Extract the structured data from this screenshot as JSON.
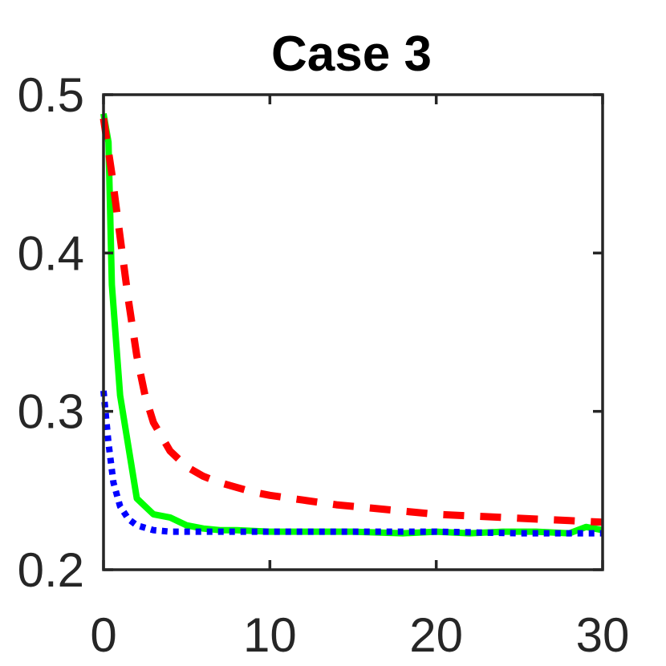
{
  "chart_data": {
    "type": "line",
    "title": "Case 3",
    "xlabel": "",
    "ylabel": "",
    "xlim": [
      0,
      30
    ],
    "ylim": [
      0.2,
      0.5
    ],
    "xticks": [
      0,
      10,
      20,
      30
    ],
    "xtick_labels": [
      "0",
      "10",
      "20",
      "30"
    ],
    "yticks": [
      0.2,
      0.3,
      0.4,
      0.5
    ],
    "ytick_labels": [
      "0.2",
      "0.3",
      "0.4",
      "0.5"
    ],
    "grid": false,
    "legend": "none",
    "series": [
      {
        "color": "#00ff00",
        "style": "solid",
        "x": [
          0,
          0.3,
          0.5,
          1,
          2,
          3,
          4,
          5,
          6,
          7,
          8,
          10,
          12,
          15,
          18,
          20,
          22,
          24,
          26,
          28,
          29,
          30
        ],
        "y": [
          0.488,
          0.47,
          0.38,
          0.31,
          0.245,
          0.235,
          0.233,
          0.228,
          0.226,
          0.225,
          0.225,
          0.224,
          0.224,
          0.224,
          0.223,
          0.224,
          0.223,
          0.224,
          0.224,
          0.223,
          0.227,
          0.225
        ]
      },
      {
        "color": "#ff0000",
        "style": "dashed",
        "x": [
          0,
          0.5,
          1,
          1.5,
          2,
          2.5,
          3,
          4,
          5,
          6,
          7,
          8,
          9,
          10,
          12,
          14,
          16,
          18,
          20,
          22,
          24,
          26,
          28,
          30
        ],
        "y": [
          0.485,
          0.45,
          0.41,
          0.37,
          0.335,
          0.31,
          0.293,
          0.275,
          0.265,
          0.259,
          0.255,
          0.252,
          0.249,
          0.247,
          0.244,
          0.241,
          0.239,
          0.237,
          0.235,
          0.234,
          0.233,
          0.232,
          0.231,
          0.23
        ]
      },
      {
        "color": "#0000ff",
        "style": "dotted",
        "x": [
          0,
          0.3,
          0.6,
          1,
          1.5,
          2,
          3,
          4,
          5,
          7,
          10,
          15,
          20,
          25,
          30
        ],
        "y": [
          0.313,
          0.28,
          0.255,
          0.24,
          0.232,
          0.228,
          0.225,
          0.224,
          0.224,
          0.224,
          0.224,
          0.224,
          0.224,
          0.223,
          0.223
        ]
      }
    ]
  }
}
